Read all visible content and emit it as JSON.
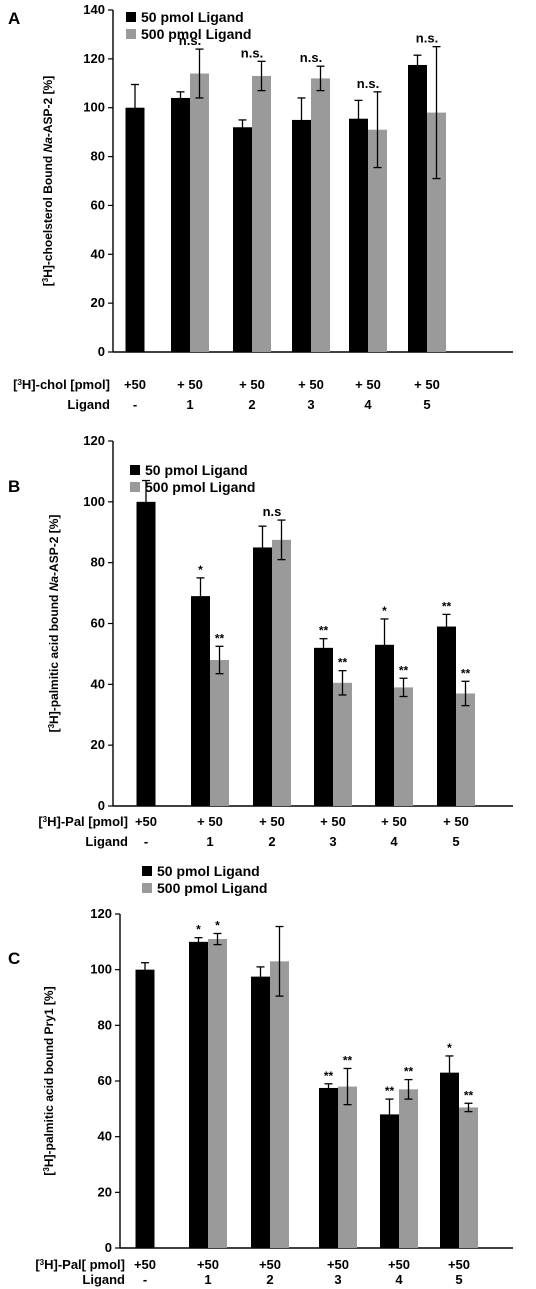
{
  "colors": {
    "series_50": "#000000",
    "series_500": "#9a9a9a",
    "axis": "#000000"
  },
  "chart_data": [
    {
      "panel": "A",
      "type": "bar",
      "categories": [
        "-",
        "1",
        "2",
        "3",
        "4",
        "5"
      ],
      "ylabel_parts": [
        "[",
        "3",
        "H]-choelsterol Bound ",
        "Na",
        "-ASP-2 [%]"
      ],
      "ylim": [
        0,
        140
      ],
      "yticks": [
        0,
        20,
        40,
        60,
        80,
        100,
        120,
        140
      ],
      "legend": [
        "50 pmol Ligand",
        "500 pmol Ligand"
      ],
      "legend_position": "top-left",
      "series": [
        {
          "name": "50 pmol Ligand",
          "values": [
            100,
            104,
            92,
            95,
            95.5,
            117.5
          ],
          "errors": [
            9.5,
            2.5,
            3,
            9,
            7.5,
            4
          ]
        },
        {
          "name": "500 pmol Ligand",
          "values": [
            null,
            114,
            113,
            112,
            91,
            98
          ],
          "errors": [
            null,
            10,
            6,
            5,
            15.5,
            27
          ]
        }
      ],
      "annotations": [
        "",
        "n.s.",
        "n.s.",
        "n.s.",
        "n.s.",
        "n.s."
      ],
      "annotation_series": 1,
      "rows": [
        {
          "label_parts": [
            "[",
            "3",
            "H]-chol [pmol]"
          ],
          "values": [
            "+50",
            "+ 50",
            "+ 50",
            "+ 50",
            "+ 50",
            "+ 50"
          ]
        },
        {
          "label_parts": [
            "Ligand",
            "",
            ""
          ],
          "values": [
            "-",
            "1",
            "2",
            "3",
            "4",
            "5"
          ]
        }
      ]
    },
    {
      "panel": "B",
      "type": "bar",
      "categories": [
        "-",
        "1",
        "2",
        "3",
        "4",
        "5"
      ],
      "ylabel_parts": [
        "[",
        "3",
        "H]-palmitic acid bound ",
        "Na",
        "-ASP-2 [%]"
      ],
      "ylim": [
        0,
        120
      ],
      "yticks": [
        0,
        20,
        40,
        60,
        80,
        100,
        120
      ],
      "legend": [
        "50 pmol Ligand",
        "500 pmol Ligand"
      ],
      "legend_position": "top-left",
      "series": [
        {
          "name": "50 pmol Ligand",
          "values": [
            100,
            69,
            85,
            52,
            53,
            59
          ],
          "errors": [
            7,
            6,
            7,
            3,
            8.5,
            4
          ],
          "stars": [
            "",
            "*",
            "",
            "**",
            "*",
            "**"
          ]
        },
        {
          "name": "500 pmol Ligand",
          "values": [
            null,
            48,
            87.5,
            40.5,
            39,
            37
          ],
          "errors": [
            null,
            4.5,
            6.5,
            4,
            3,
            4
          ],
          "stars": [
            "",
            "**",
            "",
            "**",
            "**",
            "**"
          ]
        }
      ],
      "annotations": [
        "",
        "",
        "n.s",
        "",
        "",
        ""
      ],
      "annotation_series": 1,
      "rows": [
        {
          "label_parts": [
            "[",
            "3",
            "H]-Pal [pmol]"
          ],
          "values": [
            "+50",
            "+ 50",
            "+ 50",
            "+ 50",
            "+ 50",
            "+ 50"
          ]
        },
        {
          "label_parts": [
            "Ligand",
            "",
            ""
          ],
          "values": [
            "-",
            "1",
            "2",
            "3",
            "4",
            "5"
          ]
        }
      ]
    },
    {
      "panel": "C",
      "type": "bar",
      "categories": [
        "-",
        "1",
        "2",
        "3",
        "4",
        "5"
      ],
      "ylabel_parts": [
        "[",
        "3",
        "H]-palmitic acid bound Pry1 [%]",
        "",
        ""
      ],
      "ylim": [
        0,
        120
      ],
      "yticks": [
        0,
        20,
        40,
        60,
        80,
        100,
        120
      ],
      "legend": [
        "50 pmol Ligand",
        "500 pmol Ligand"
      ],
      "legend_position": "top-left",
      "series": [
        {
          "name": "50 pmol Ligand",
          "values": [
            100,
            110,
            97.5,
            57.5,
            48,
            63
          ],
          "errors": [
            2.5,
            1.5,
            3.5,
            1.5,
            5.5,
            6
          ],
          "stars": [
            "",
            "*",
            "",
            "**",
            "**",
            "*"
          ]
        },
        {
          "name": "500 pmol Ligand",
          "values": [
            null,
            111,
            103,
            58,
            57,
            50.5
          ],
          "errors": [
            null,
            2,
            12.5,
            6.5,
            3.5,
            1.5
          ],
          "stars": [
            "",
            "*",
            "",
            "**",
            "**",
            "**"
          ]
        }
      ],
      "annotations": [
        "",
        "",
        "",
        "",
        "",
        ""
      ],
      "annotation_series": 1,
      "rows": [
        {
          "label_parts": [
            "[",
            "3",
            "H]-Pal[ pmol]"
          ],
          "values": [
            "+50",
            "+50",
            "+50",
            "+50",
            "+50",
            "+50"
          ]
        },
        {
          "label_parts": [
            "Ligand",
            "",
            ""
          ],
          "values": [
            "-",
            "1",
            "2",
            "3",
            "4",
            "5"
          ]
        }
      ]
    }
  ]
}
